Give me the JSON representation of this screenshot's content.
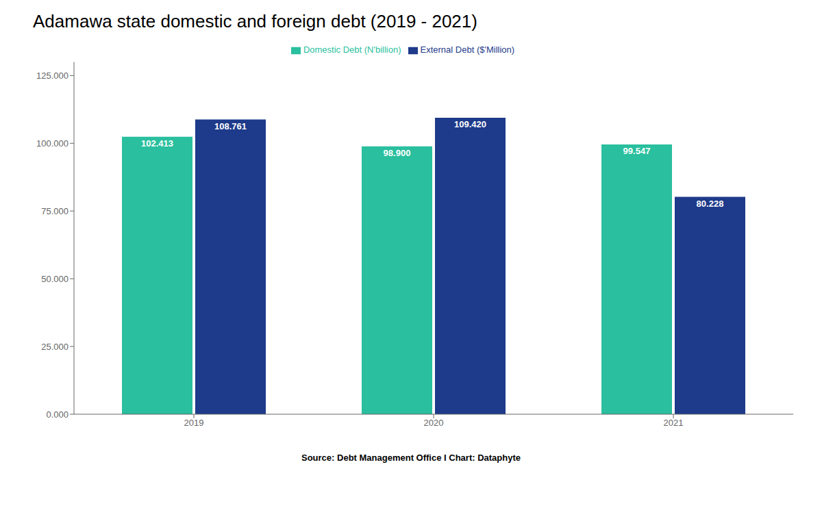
{
  "chart_data": {
    "type": "bar",
    "title": "Adamawa state domestic and foreign debt (2019 - 2021)",
    "categories": [
      "2019",
      "2020",
      "2021"
    ],
    "series": [
      {
        "name": "Domestic Debt (N'billion)",
        "color": "#2abf9e",
        "values": [
          102.413,
          98.9,
          99.547
        ],
        "value_labels": [
          "102.413",
          "98.900",
          "99.547"
        ]
      },
      {
        "name": "External Debt ($'Million)",
        "color": "#1e3a8a",
        "values": [
          108.761,
          109.42,
          80.228
        ],
        "value_labels": [
          "108.761",
          "109.420",
          "80.228"
        ]
      }
    ],
    "ylim": [
      0,
      130
    ],
    "yticks": [
      {
        "value": 0,
        "label": "0.000"
      },
      {
        "value": 25,
        "label": "25.000"
      },
      {
        "value": 50,
        "label": "50.000"
      },
      {
        "value": 75,
        "label": "75.000"
      },
      {
        "value": 100,
        "label": "100.000"
      },
      {
        "value": 125,
        "label": "125.000"
      }
    ],
    "grid": false,
    "legend": "top",
    "data_labels": true,
    "annotations": [
      "Source: Debt Management Office I Chart: Dataphyte"
    ]
  }
}
